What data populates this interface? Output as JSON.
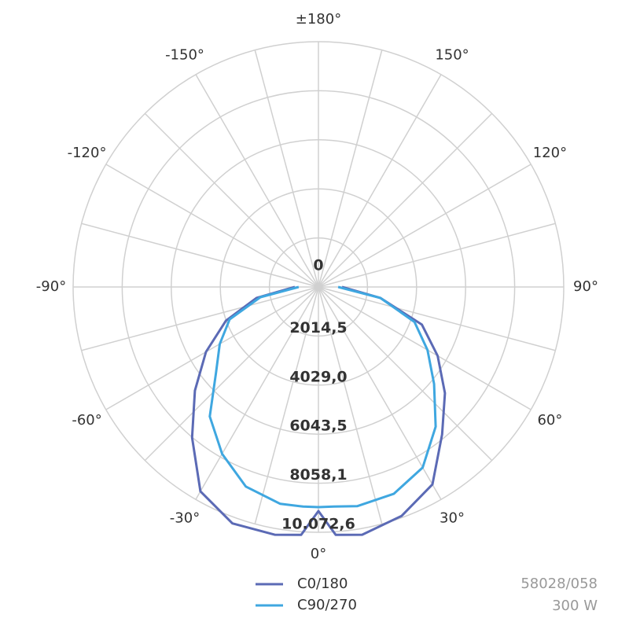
{
  "chart_data": {
    "type": "polar",
    "xticks": [
      {
        "value": -150,
        "label": "-150°"
      },
      {
        "value": -120,
        "label": "-120°"
      },
      {
        "value": -90,
        "label": "-90°"
      },
      {
        "value": -60,
        "label": "-60°"
      },
      {
        "value": -30,
        "label": "-30°"
      },
      {
        "value": 0,
        "label": "0°"
      },
      {
        "value": 30,
        "label": "30°"
      },
      {
        "value": 60,
        "label": "60°"
      },
      {
        "value": 90,
        "label": "90°"
      },
      {
        "value": 120,
        "label": "120°"
      },
      {
        "value": 150,
        "label": "150°"
      },
      {
        "value": 180,
        "label": "±180°"
      }
    ],
    "xminorticks": [
      -165,
      -135,
      -105,
      -75,
      -45,
      -15,
      15,
      45,
      75,
      105,
      135,
      165
    ],
    "ylim": [
      0,
      10072.6
    ],
    "yticks": [
      0,
      {
        "value": 2014.5,
        "label": "2014,5"
      },
      {
        "value": 4029.0,
        "label": "4029,0"
      },
      {
        "value": 6043.5,
        "label": "6043,5"
      },
      {
        "value": 8058.1,
        "label": "8058,1"
      },
      {
        "value": 10072.6,
        "label": "10.072,6"
      }
    ],
    "grid": true,
    "x": [
      -90,
      -80,
      -70,
      -60,
      -50,
      -40,
      -30,
      -20,
      -10,
      -4,
      0,
      4,
      10,
      20,
      30,
      40,
      50,
      60,
      70,
      80,
      90
    ],
    "series": [
      {
        "name": "C0/180",
        "color": "#5b6ab5",
        "values": [
          970,
          2580,
          4040,
          5330,
          6620,
          8070,
          9690,
          10330,
          10330,
          10200,
          9200,
          10200,
          10330,
          10000,
          9360,
          7900,
          6780,
          5650,
          4520,
          2580,
          970
        ]
      },
      {
        "name": "C90/270",
        "color": "#3fa7e0",
        "values": [
          810,
          2420,
          3880,
          4680,
          5490,
          6940,
          7910,
          8720,
          9040,
          9040,
          9040,
          9040,
          9140,
          9040,
          8560,
          7490,
          6200,
          5170,
          4200,
          2580,
          810
        ]
      }
    ],
    "annotations": [
      "58028/058",
      "300 W"
    ]
  }
}
